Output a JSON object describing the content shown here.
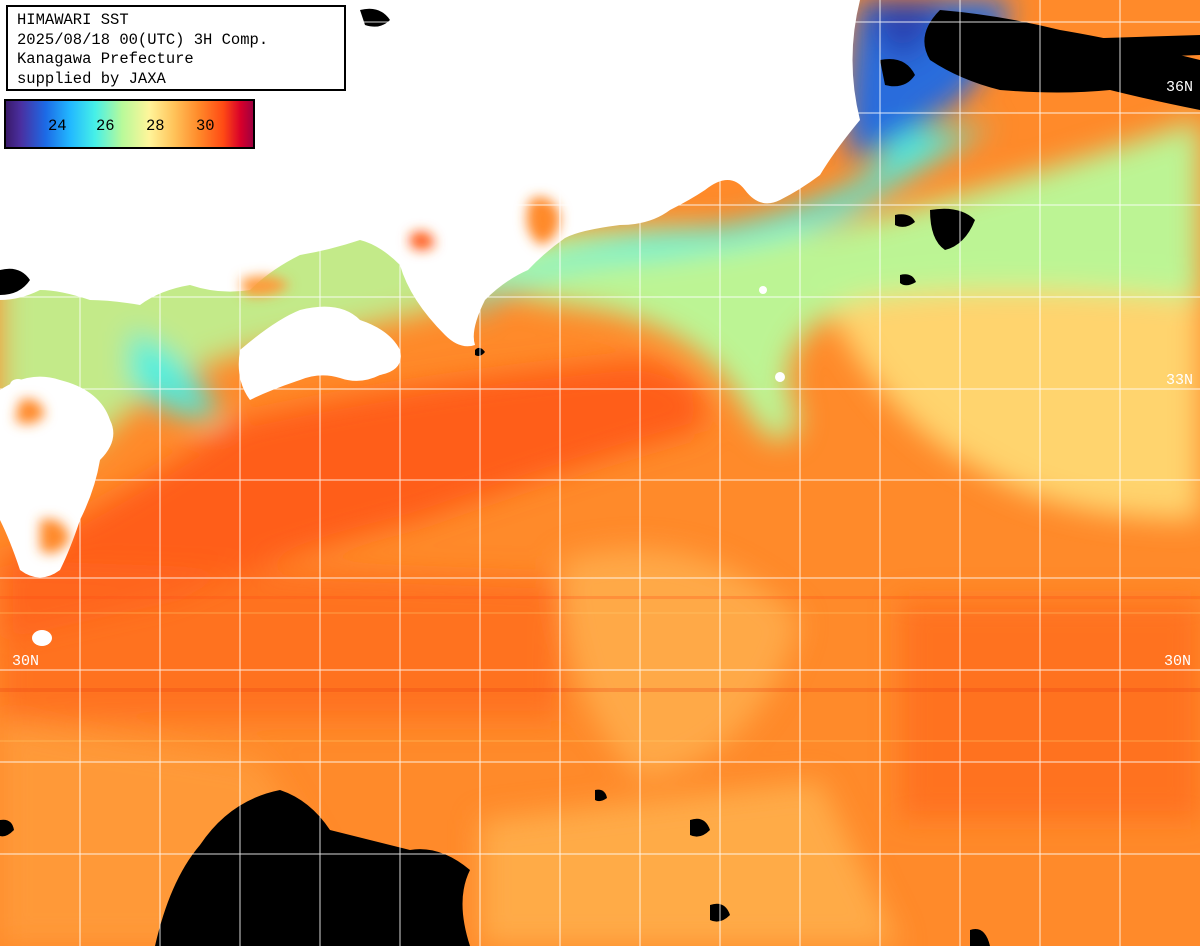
{
  "header": {
    "line1": "HIMAWARI SST",
    "line2": "2025/08/18 00(UTC) 3H Comp.",
    "line3": "Kanagawa Prefecture",
    "line4": "supplied by JAXA"
  },
  "colorbar": {
    "ticks": [
      "24",
      "26",
      "28",
      "30"
    ]
  },
  "latitude_labels": {
    "top_right": "36N",
    "mid_right": "33N",
    "left_30": "30N",
    "right_30": "30N"
  },
  "colors": {
    "ocean_warm": "#ff8a2a",
    "ocean_hot": "#ff5a18",
    "ocean_mild": "#ffc35a",
    "ocean_cool": "#b8fa9a",
    "coastal_cyan": "#46f0e8",
    "cold_blue": "#1c6ae6",
    "land": "#ffffff",
    "cloud_mask": "#000000",
    "grid": "#ffffff"
  }
}
